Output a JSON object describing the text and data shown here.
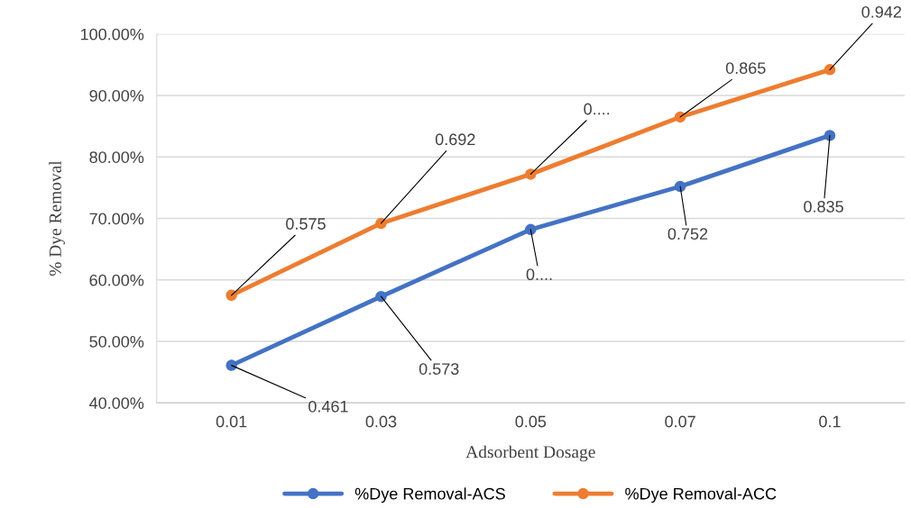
{
  "chart_data": {
    "type": "line",
    "xlabel": "Adsorbent Dosage",
    "ylabel": "% Dye Removal",
    "categories": [
      "0.01",
      "0.03",
      "0.05",
      "0.07",
      "0.1"
    ],
    "series": [
      {
        "name": "%Dye Removal-ACS",
        "color": "#4472c4",
        "values": [
          0.461,
          0.573,
          0.682,
          0.752,
          0.835
        ],
        "value_labels": [
          "0.461",
          "0.573",
          "0....",
          "0.752",
          "0.835"
        ]
      },
      {
        "name": "%Dye Removal-ACC",
        "color": "#ed7d31",
        "values": [
          0.575,
          0.692,
          0.772,
          0.865,
          0.942
        ],
        "value_labels": [
          "0.575",
          "0.692",
          "0....",
          "0.865",
          "0.942"
        ]
      }
    ],
    "ylim": [
      0.4,
      1.0
    ],
    "yticks": [
      {
        "value": 0.4,
        "label": "40.00%"
      },
      {
        "value": 0.5,
        "label": "50.00%"
      },
      {
        "value": 0.6,
        "label": "60.00%"
      },
      {
        "value": 0.7,
        "label": "70.00%"
      },
      {
        "value": 0.8,
        "label": "80.00%"
      },
      {
        "value": 0.9,
        "label": "90.00%"
      },
      {
        "value": 1.0,
        "label": "100.00%"
      }
    ],
    "grid": "y",
    "legend": "bottom",
    "marker": "circle",
    "line_style": "solid"
  }
}
